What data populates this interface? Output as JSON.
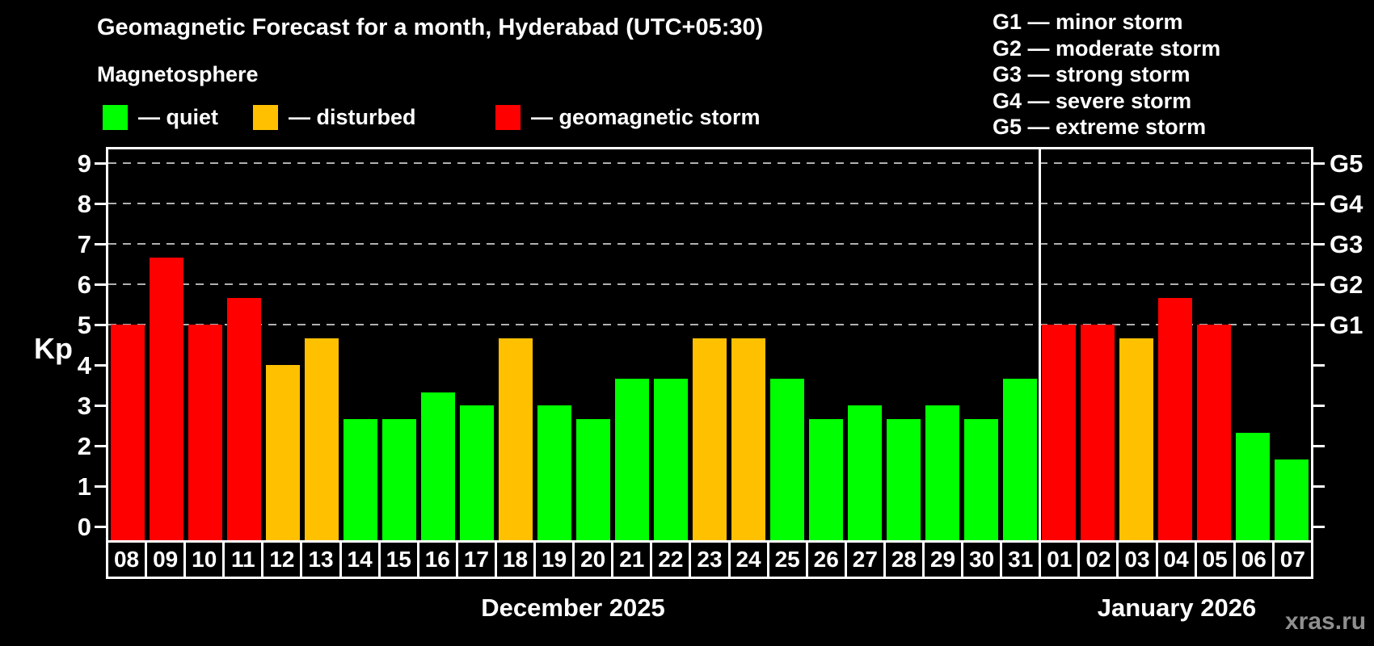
{
  "header": {
    "title": "Geomagnetic Forecast for a month, Hyderabad (UTC+05:30)",
    "subtitle": "Magnetosphere"
  },
  "legend": {
    "items": [
      {
        "key": "quiet",
        "label": "— quiet",
        "color": "#00ff00"
      },
      {
        "key": "disturbed",
        "label": "— disturbed",
        "color": "#ffc000"
      },
      {
        "key": "storm",
        "label": "— geomagnetic storm",
        "color": "#ff0000"
      }
    ]
  },
  "g_legend": {
    "items": [
      "G1 — minor storm",
      "G2 — moderate storm",
      "G3 — strong storm",
      "G4 — severe storm",
      "G5 — extreme storm"
    ]
  },
  "footer": {
    "watermark": "xras.ru"
  },
  "chart_data": {
    "type": "bar",
    "title": "Geomagnetic Forecast for a month, Hyderabad (UTC+05:30)",
    "xlabel": "",
    "ylabel": "Kp",
    "ylim": [
      0,
      9.4
    ],
    "yticks": [
      0,
      1,
      2,
      3,
      4,
      5,
      6,
      7,
      8,
      9
    ],
    "right_axis_labels": {
      "G1": 5,
      "G2": 6,
      "G3": 7,
      "G4": 8,
      "G5": 9
    },
    "gridlines_at": [
      5,
      6,
      7,
      8,
      9
    ],
    "grid_style": "dashed",
    "legend_position": "top-left",
    "background": "#000000",
    "categories": [
      "08",
      "09",
      "10",
      "11",
      "12",
      "13",
      "14",
      "15",
      "16",
      "17",
      "18",
      "19",
      "20",
      "21",
      "22",
      "23",
      "24",
      "25",
      "26",
      "27",
      "28",
      "29",
      "30",
      "31",
      "01",
      "02",
      "03",
      "04",
      "05",
      "06",
      "07"
    ],
    "values": [
      5,
      6.67,
      5,
      5.67,
      4,
      4.67,
      2.67,
      2.67,
      3.33,
      3,
      4.67,
      3,
      2.67,
      3.67,
      3.67,
      4.67,
      4.67,
      3.67,
      2.67,
      3,
      2.67,
      3,
      2.67,
      3.67,
      5,
      5,
      4.67,
      5.67,
      5,
      2.33,
      1.67
    ],
    "levels": [
      "storm",
      "storm",
      "storm",
      "storm",
      "disturbed",
      "disturbed",
      "quiet",
      "quiet",
      "quiet",
      "quiet",
      "disturbed",
      "quiet",
      "quiet",
      "quiet",
      "quiet",
      "disturbed",
      "disturbed",
      "quiet",
      "quiet",
      "quiet",
      "quiet",
      "quiet",
      "quiet",
      "quiet",
      "storm",
      "storm",
      "disturbed",
      "storm",
      "storm",
      "quiet",
      "quiet"
    ],
    "level_rule": {
      "quiet": "Kp < 4",
      "disturbed": "4 <= Kp < 5",
      "storm": "Kp >= 5"
    },
    "month_groups": [
      {
        "label": "December 2025",
        "count": 24
      },
      {
        "label": "January 2026",
        "count": 7
      }
    ]
  }
}
